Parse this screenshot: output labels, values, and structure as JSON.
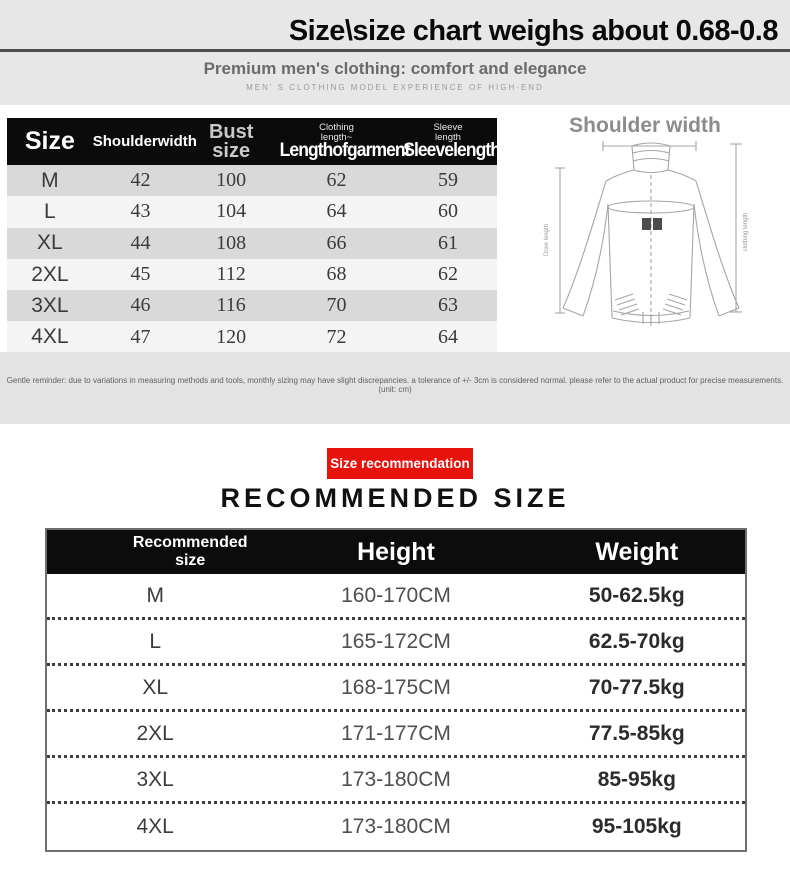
{
  "header": {
    "title": "Size\\size chart weighs about 0.68-0.8",
    "subtitle": "Premium men's clothing: comfort and elegance",
    "tagline": "MEN' S CLOTHING MODEL EXPERIENCE OF HIGH-END"
  },
  "size_table": {
    "h_size": "Size",
    "h_shoulder": "Shoulderwidth",
    "h_bust_line1": "Bust",
    "h_bust_line2": "size",
    "h_len_small1": "Clothing",
    "h_len_small2": "length~",
    "h_len_big": "Lengthofgarment",
    "h_slv_small1": "Sleeve",
    "h_slv_small2": "length",
    "h_slv_big": "Sleevelength",
    "rows": [
      [
        "M",
        "42",
        "100",
        "62",
        "59"
      ],
      [
        "L",
        "43",
        "104",
        "64",
        "60"
      ],
      [
        "XL",
        "44",
        "108",
        "66",
        "61"
      ],
      [
        "2XL",
        "45",
        "112",
        "68",
        "62"
      ],
      [
        "3XL",
        "46",
        "116",
        "70",
        "63"
      ],
      [
        "4XL",
        "47",
        "120",
        "72",
        "64"
      ]
    ]
  },
  "diagram": {
    "title": "Shoulder width",
    "left_label": "Draw length",
    "right_label": "clothing length"
  },
  "reminder": "Gentle reminder: due to variations in measuring methods and tools, monthly sizing may have slight discrepancies. a tolerance of +/- 3cm is considered normal. please refer to the actual product for precise measurements. (unit: cm)",
  "recommendation": {
    "badge": "Size recommendation",
    "heading": "RECOMMENDED SIZE",
    "h_size": "Recommended size",
    "h_height": "Height",
    "h_weight": "Weight",
    "rows": [
      [
        "M",
        "160-170CM",
        "50-62.5kg"
      ],
      [
        "L",
        "165-172CM",
        "62.5-70kg"
      ],
      [
        "XL",
        "168-175CM",
        "70-77.5kg"
      ],
      [
        "2XL",
        "171-177CM",
        "77.5-85kg"
      ],
      [
        "3XL",
        "173-180CM",
        "85-95kg"
      ],
      [
        "4XL",
        "173-180CM",
        "95-105kg"
      ]
    ]
  },
  "colors": {
    "accent_red": "#e8120c",
    "table_header_black": "#0c0c0c",
    "band_gray": "#e7e7e7"
  }
}
